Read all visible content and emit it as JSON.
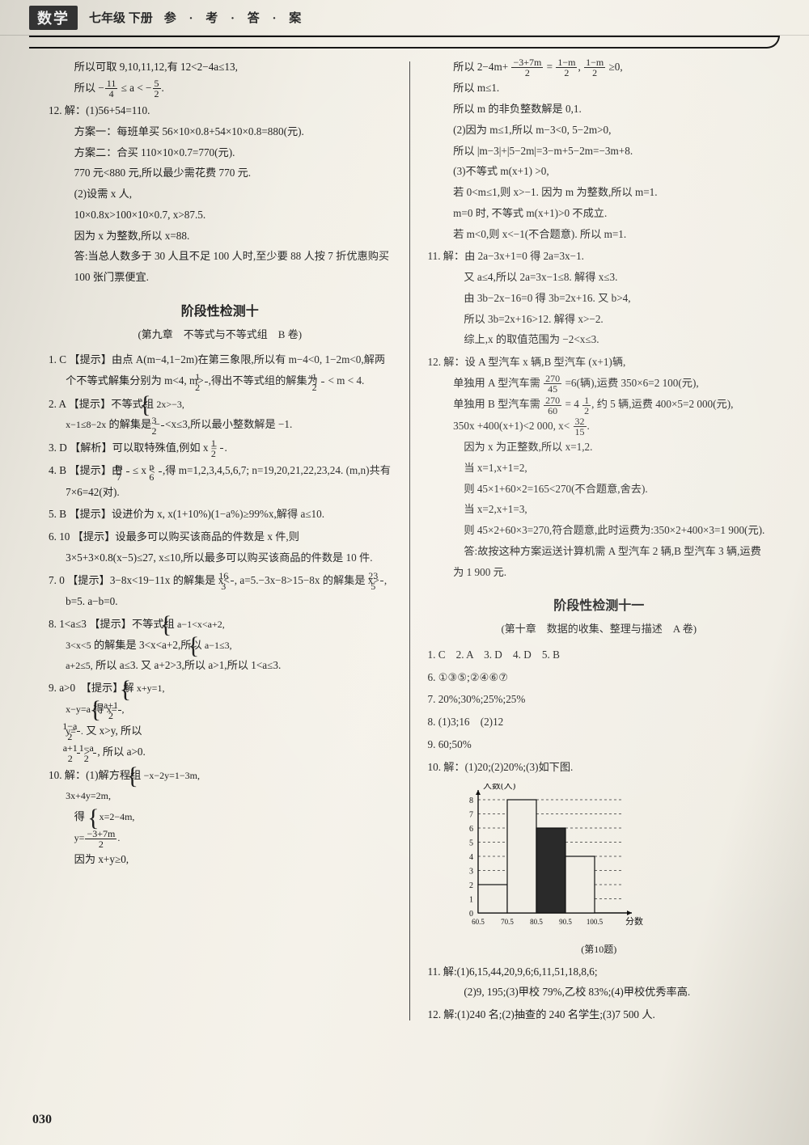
{
  "header": {
    "subject": "数学",
    "grade": "七年级 下册",
    "label": "参 · 考 · 答 · 案"
  },
  "page_number": "030",
  "left": {
    "p_top": [
      "所以可取 9,10,11,12,有 12<2−4a≤13,",
      "所以 −11/4 ≤ a < −5/2."
    ],
    "q12": {
      "num": "12.",
      "lines": [
        "解：(1)56+54=110.",
        "方案一：每班单买 56×10×0.8+54×10×0.8=880(元).",
        "方案二：合买 110×10×0.7=770(元).",
        "770 元<880 元,所以最少需花费 770 元.",
        "(2)设需 x 人,",
        "10×0.8x>100×10×0.7, x>87.5.",
        "因为 x 为整数,所以 x=88.",
        "答:当总人数多于 30 人且不足 100 人时,至少要 88 人按 7 折优惠购买 100 张门票便宜."
      ]
    },
    "section_title": "阶段性检测十",
    "section_sub": "(第九章　不等式与不等式组　B 卷)",
    "items": [
      "1. C 【提示】由点 A(m−4,1−2m)在第三象限,所以有 m−4<0, 1−2m<0,解两个不等式解集分别为 m<4, m>1/2,得出不等式组的解集为 1/2 < m < 4.",
      "2. A 【提示】不等式组 {2x>−3, x−1≤8−2x 的解集是 −3/2 < x ≤ 3,所以最小整数解是 −1.",
      "3. D 【解析】可以取特殊值,例如 x = 1/2.",
      "4. B 【提示】由 m/7 ≤ x < n/6,得 m=1,2,3,4,5,6,7; n=19,20,21,22,23,24. (m,n)共有 7×6=42(对).",
      "5. B 【提示】设进价为 x, x(1+10%)(1−a%)≥99%x,解得 a≤10.",
      "6. 10 【提示】设最多可以购买该商品的件数是 x 件,则 3×5+3×0.8(x−5)≤27, x≤10,所以最多可以购买该商品的件数是 10 件.",
      "7. 0 【提示】3−8x<19−11x 的解集是 x<16/3, a=5.−3x−8>15−8x 的解集是 x>23/5, b=5. a−b=0.",
      "8. 1<a≤3 【提示】不等式组 {a−1<x<a+2, 3<x<5 的解集是 3<x<a+2,所以 {a−1≤3, a+2≤5, 所以 a≤3. 又 a+2>3,所以 a>1,所以 1<a≤3.",
      "9. a>0  【提示】解 {x+y=1, x−y=a 得 {x=(a+1)/2, y=(1−a)/2. 又 x>y, 所以 (a+1)/2 > (1−a)/2, 所以 a>0.",
      "10. 解：(1)解方程组 {−x−2y=1−3m, 3x+4y=2m,",
      "　　得 {x=2−4m, y=(−3+7m)/2.",
      "　　因为 x+y≥0,"
    ]
  },
  "right": {
    "p_top": [
      "所以 2−4m+ (−3+7m)/2 = (1−m)/2, (1−m)/2 ≥0,",
      "所以 m≤1.",
      "所以 m 的非负整数解是 0,1.",
      "(2)因为 m≤1,所以 m−3<0, 5−2m>0,",
      "所以 |m−3|+|5−2m|=3−m+5−2m=−3m+8.",
      "(3)不等式 m(x+1) >0,",
      "若 0<m≤1,则 x>−1. 因为 m 为整数,所以 m=1.",
      "m=0 时, 不等式 m(x+1)>0 不成立.",
      "若 m<0,则 x<−1(不合题意). 所以 m=1."
    ],
    "q11": [
      "11. 解：由 2a−3x+1=0 得 2a=3x−1.",
      "　又 a≤4,所以 2a=3x−1≤8. 解得 x≤3.",
      "　由 3b−2x−16=0 得 3b=2x+16. 又 b>4,",
      "　所以 3b=2x+16>12. 解得 x>−2.",
      "　综上,x 的取值范围为 −2<x≤3."
    ],
    "q12": [
      "12. 解：设 A 型汽车 x 辆,B 型汽车 (x+1)辆,",
      "　单独用 A 型汽车需 270/45 =6(辆),运费 350×6=2 100(元),",
      "　单独用 B 型汽车需 270/60 = 4 1/2, 约 5 辆,运费 400×5=2 000(元),",
      "　350x +400(x+1)<2 000, x< 32/15.",
      "　因为 x 为正整数,所以 x=1,2.",
      "　当 x=1,x+1=2,",
      "　则 45×1+60×2=165<270(不合题意,舍去).",
      "　当 x=2,x+1=3,",
      "　则 45×2+60×3=270,符合题意,此时运费为:350×2+400×3=1 900(元).",
      "　答:故按这种方案运送计算机需 A 型汽车 2 辆,B 型汽车 3 辆,运费为 1 900 元."
    ],
    "section_title": "阶段性检测十一",
    "section_sub": "(第十章　数据的收集、整理与描述　A 卷)",
    "simple": [
      "1. C　2. A　3. D　4. D　5. B",
      "6. ①③⑤;②④⑥⑦",
      "7. 20%;30%;25%;25%",
      "8. (1)3;16　(2)12",
      "9. 60;50%",
      "10. 解：(1)20;(2)20%;(3)如下图."
    ],
    "chart": {
      "caption": "(第10题)",
      "y_label": "人数(人)",
      "x_label": "分数",
      "y_ticks": [
        0,
        1,
        2,
        3,
        4,
        5,
        6,
        7,
        8
      ],
      "x_ticks": [
        "60.5",
        "70.5",
        "80.5",
        "90.5",
        "100.5"
      ],
      "bars": [
        {
          "x": 0,
          "h": 2,
          "fill": "#f1eee6"
        },
        {
          "x": 1,
          "h": 8,
          "fill": "#f1eee6"
        },
        {
          "x": 2,
          "h": 6,
          "fill": "#2a2a2a"
        },
        {
          "x": 3,
          "h": 4,
          "fill": "#f1eee6"
        }
      ],
      "axis_color": "#111",
      "grid_color": "#333",
      "bar_stroke": "#111"
    },
    "q11b": [
      "11. 解:(1)6,15,44,20,9,6;6,11,51,18,8,6;",
      "　(2)9, 195;(3)甲校 79%,乙校 83%;(4)甲校优秀率高."
    ],
    "q12b": "12. 解:(1)240 名;(2)抽查的 240 名学生;(3)7 500 人."
  }
}
